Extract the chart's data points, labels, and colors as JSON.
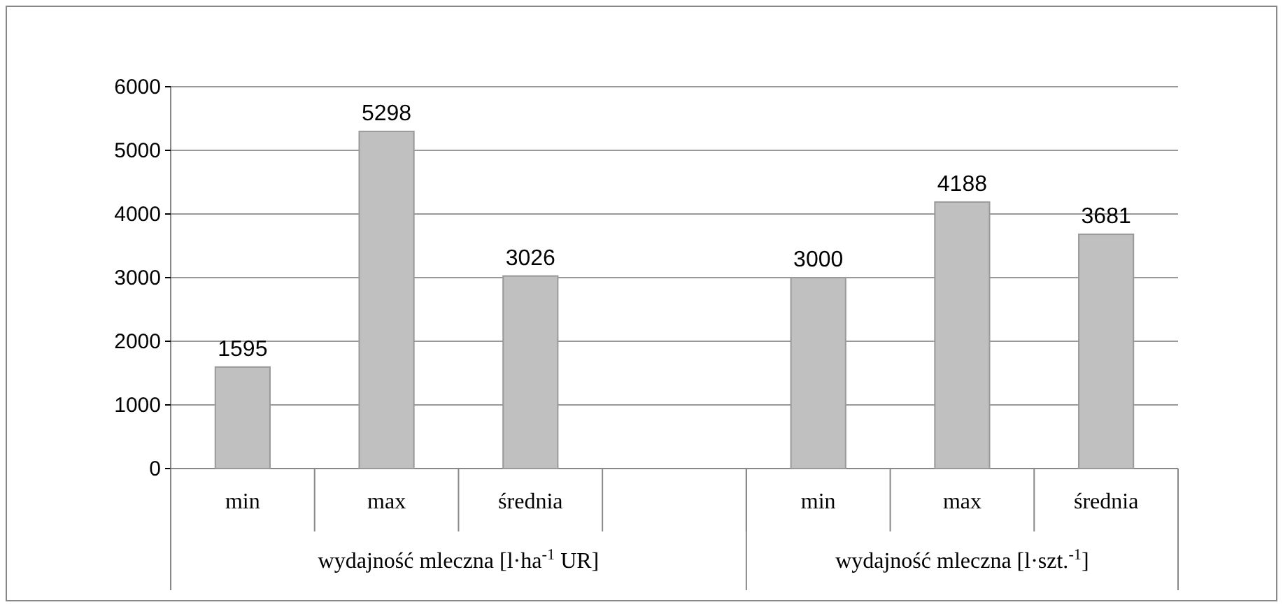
{
  "chart_data": {
    "type": "bar",
    "categories": [
      "min",
      "max",
      "średnia",
      null,
      "min",
      "max",
      "średnia"
    ],
    "values": [
      1595,
      5298,
      3026,
      null,
      3000,
      4188,
      3681
    ],
    "color": "#c0c0c0",
    "data_labels": true,
    "ylim": [
      0,
      6000
    ],
    "yticks": [
      0,
      1000,
      2000,
      3000,
      4000,
      5000,
      6000
    ],
    "grid": "y",
    "annotations": [
      "wydajność mleczna  [l·ha$^{-1}$ UR]",
      "wydajność mleczna [l·szt.$^{-1}$]"
    ]
  }
}
